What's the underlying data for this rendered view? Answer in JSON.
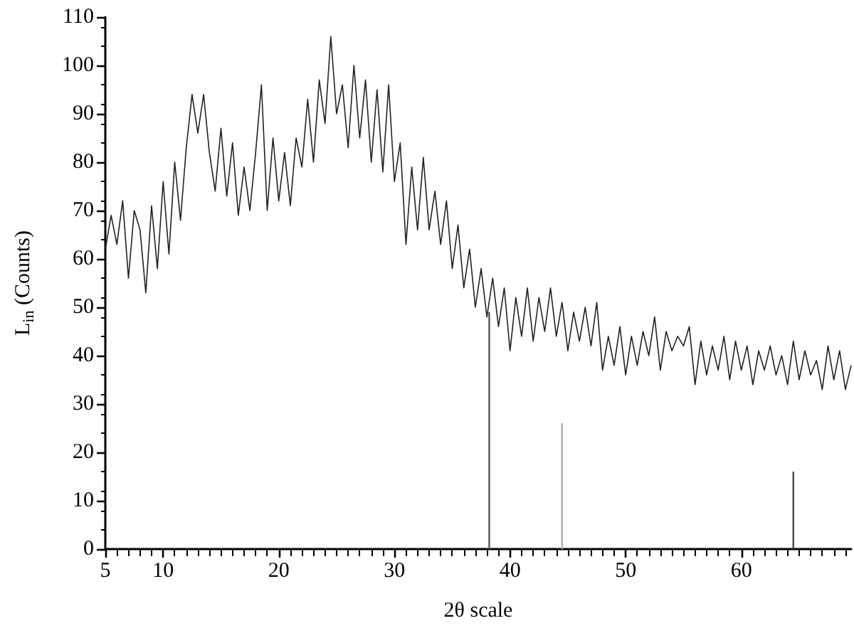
{
  "chart_data": {
    "type": "line",
    "xlabel": "2θ scale",
    "ylabel": "L$_{in}$ (Counts)",
    "xlim": [
      5,
      69.5
    ],
    "xticks": [
      5,
      10,
      20,
      30,
      40,
      50,
      60
    ],
    "ylim": [
      0,
      110
    ],
    "yticks": [
      0,
      10,
      20,
      30,
      40,
      50,
      60,
      70,
      80,
      90,
      100,
      110
    ],
    "grid": false,
    "marker": "none",
    "line_style": "solid",
    "series": [
      {
        "color": "#222222",
        "x": [
          5,
          5.5,
          6,
          6.5,
          7,
          7.5,
          8,
          8.5,
          9,
          9.5,
          10,
          10.5,
          11,
          11.5,
          12,
          12.5,
          13,
          13.5,
          14,
          14.5,
          15,
          15.5,
          16,
          16.5,
          17,
          17.5,
          18,
          18.5,
          19,
          19.5,
          20,
          20.5,
          21,
          21.5,
          22,
          22.5,
          23,
          23.5,
          24,
          24.5,
          25,
          25.5,
          26,
          26.5,
          27,
          27.5,
          28,
          28.5,
          29,
          29.5,
          30,
          30.5,
          31,
          31.5,
          32,
          32.5,
          33,
          33.5,
          34,
          34.5,
          35,
          35.5,
          36,
          36.5,
          37,
          37.5,
          38,
          38.5,
          39,
          39.5,
          40,
          40.5,
          41,
          41.5,
          42,
          42.5,
          43,
          43.5,
          44,
          44.5,
          45,
          45.5,
          46,
          46.5,
          47,
          47.5,
          48,
          48.5,
          49,
          49.5,
          50,
          50.5,
          51,
          51.5,
          52,
          52.5,
          53,
          53.5,
          54,
          54.5,
          55,
          55.5,
          56,
          56.5,
          57,
          57.5,
          58,
          58.5,
          59,
          59.5,
          60,
          60.5,
          61,
          61.5,
          62,
          62.5,
          63,
          63.5,
          64,
          64.5,
          65,
          65.5,
          66,
          66.5,
          67,
          67.5,
          68,
          68.5,
          69,
          69.5
        ],
        "values": [
          62,
          69,
          63,
          72,
          56,
          70,
          66,
          53,
          71,
          58,
          76,
          61,
          80,
          68,
          83,
          94,
          86,
          94,
          82,
          74,
          87,
          73,
          84,
          69,
          79,
          70,
          82,
          96,
          70,
          85,
          72,
          82,
          71,
          85,
          79,
          93,
          80,
          97,
          88,
          106,
          90,
          96,
          83,
          100,
          85,
          97,
          80,
          95,
          78,
          96,
          76,
          84,
          63,
          79,
          66,
          81,
          66,
          74,
          63,
          72,
          58,
          67,
          54,
          62,
          50,
          58,
          48,
          56,
          46,
          54,
          41,
          52,
          44,
          54,
          43,
          52,
          45,
          54,
          44,
          51,
          41,
          49,
          43,
          50,
          42,
          51,
          37,
          44,
          38,
          46,
          36,
          44,
          38,
          45,
          40,
          48,
          37,
          45,
          41,
          44,
          42,
          46,
          34,
          43,
          36,
          42,
          37,
          44,
          35,
          43,
          37,
          42,
          34,
          41,
          37,
          42,
          36,
          40,
          34,
          43,
          35,
          41,
          36,
          39,
          33,
          42,
          35,
          41,
          33,
          38
        ]
      },
      {
        "type": "bar",
        "x": [
          38.2,
          44.5,
          64.5
        ],
        "values": [
          49,
          26,
          16
        ],
        "colors": [
          "#555555",
          "#aaaaaa",
          "#444444"
        ]
      }
    ]
  }
}
